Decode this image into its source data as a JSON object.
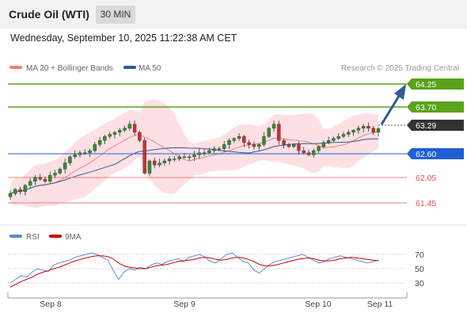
{
  "header": {
    "title": "Crude Oil (WTI)",
    "timeframe": "30 MIN"
  },
  "timestamp": "Wednesday, September 10, 2025 11:22:38 AM CET",
  "legend": {
    "ma20": "MA 20 + Bollinger Bands",
    "ma50": "MA 50",
    "ma20_color": "#f08080",
    "ma50_color": "#2e5c99"
  },
  "credit": "Research © 2025 Trading Central",
  "rsi_legend": {
    "rsi": "RSI",
    "ma9": "9MA",
    "rsi_color": "#5b8ad6",
    "ma9_color": "#cc0000"
  },
  "chart_data": [
    {
      "type": "candlestick",
      "x_axis": {
        "ticks": [
          "Sep 8",
          "Sep 9",
          "Sep 10",
          "Sep 11"
        ]
      },
      "price_levels": [
        {
          "value": "64.25",
          "kind": "resistance",
          "color": "#5aa31b"
        },
        {
          "value": "63.70",
          "kind": "resistance",
          "color": "#5aa31b"
        },
        {
          "value": "63.29",
          "kind": "last",
          "color": "#333333"
        },
        {
          "value": "62.60",
          "kind": "pivot",
          "color": "#1f5fd6"
        },
        {
          "value": "62.05",
          "kind": "support",
          "color": "#e06060"
        },
        {
          "value": "61.45",
          "kind": "support",
          "color": "#e06060"
        }
      ],
      "series": [
        {
          "name": "MA 20 + Bollinger Bands"
        },
        {
          "name": "MA 50"
        }
      ],
      "ylim": [
        61.2,
        64.5
      ],
      "close_series": [
        61.7,
        61.8,
        61.75,
        61.9,
        62.0,
        62.1,
        62.05,
        62.0,
        62.15,
        62.2,
        62.3,
        62.45,
        62.6,
        62.65,
        62.7,
        62.7,
        62.75,
        62.9,
        63.0,
        63.1,
        63.15,
        63.2,
        63.25,
        63.3,
        63.4,
        63.2,
        63.0,
        62.2,
        62.5,
        62.4,
        62.45,
        62.5,
        62.55,
        62.55,
        62.6,
        62.6,
        62.6,
        62.65,
        62.7,
        62.7,
        62.75,
        62.8,
        62.8,
        62.9,
        63.0,
        63.05,
        63.1,
        62.95,
        62.9,
        62.85,
        62.9,
        63.1,
        63.3,
        63.4,
        63.0,
        62.9,
        62.85,
        62.9,
        62.75,
        62.7,
        62.65,
        62.75,
        62.85,
        62.95,
        63.0,
        63.05,
        63.1,
        63.15,
        63.2,
        63.25,
        63.3,
        63.35,
        63.3,
        63.2,
        63.29
      ],
      "annotation": "projected move up to 64.25"
    },
    {
      "type": "line",
      "title": "RSI",
      "y_ticks": [
        "70",
        "50",
        "30"
      ],
      "ylim": [
        20,
        80
      ],
      "series": [
        {
          "name": "RSI",
          "values": [
            30,
            35,
            40,
            38,
            45,
            50,
            48,
            46,
            55,
            58,
            60,
            62,
            66,
            68,
            70,
            72,
            70,
            66,
            62,
            48,
            35,
            45,
            50,
            48,
            52,
            50,
            55,
            58,
            56,
            60,
            62,
            64,
            60,
            66,
            68,
            70,
            66,
            60,
            58,
            64,
            70,
            72,
            66,
            60,
            58,
            48,
            44,
            50,
            56,
            60,
            62,
            64,
            66,
            68,
            70,
            66,
            62,
            58,
            60,
            64,
            66,
            68,
            66,
            64,
            62,
            60,
            58,
            60,
            62
          ]
        },
        {
          "name": "9MA",
          "values": [
            24,
            28,
            32,
            35,
            38,
            42,
            45,
            47,
            50,
            52,
            55,
            58,
            61,
            63,
            65,
            67,
            68,
            68,
            67,
            64,
            58,
            54,
            52,
            51,
            50,
            50,
            52,
            54,
            55,
            56,
            58,
            60,
            61,
            62,
            63,
            65,
            66,
            65,
            63,
            62,
            63,
            65,
            66,
            65,
            63,
            60,
            56,
            54,
            54,
            55,
            57,
            59,
            61,
            63,
            64,
            65,
            64,
            62,
            61,
            61,
            62,
            64,
            65,
            66,
            65,
            64,
            63,
            62,
            61
          ]
        }
      ]
    }
  ]
}
